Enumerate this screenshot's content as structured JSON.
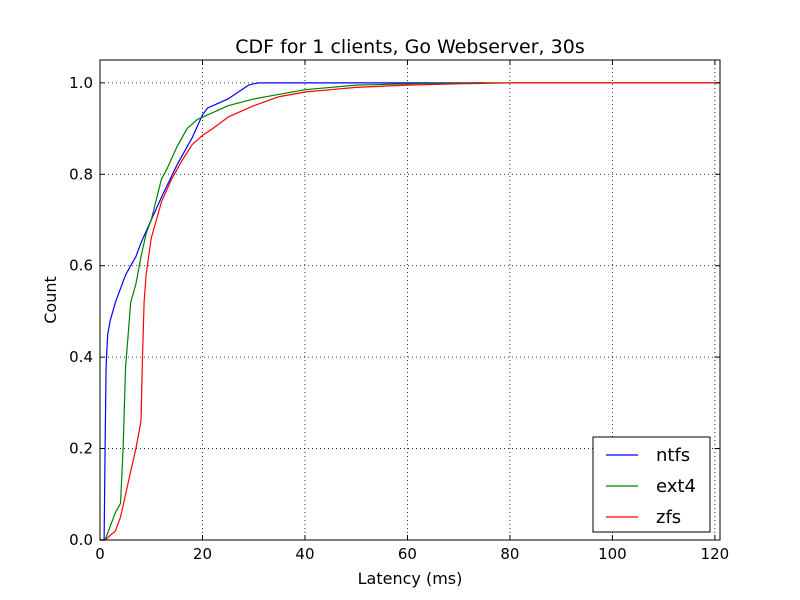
{
  "chart_data": {
    "type": "line",
    "title": "CDF for 1 clients, Go Webserver, 30s",
    "xlabel": "Latency (ms)",
    "ylabel": "Count",
    "xlim": [
      0,
      121
    ],
    "ylim": [
      0,
      1.05
    ],
    "xticks": [
      0,
      20,
      40,
      60,
      80,
      100,
      120
    ],
    "yticks": [
      0.0,
      0.2,
      0.4,
      0.6,
      0.8,
      1.0
    ],
    "xtick_labels": [
      "0",
      "20",
      "40",
      "60",
      "80",
      "100",
      "120"
    ],
    "ytick_labels": [
      "0.0",
      "0.2",
      "0.4",
      "0.6",
      "0.8",
      "1.0"
    ],
    "grid": true,
    "legend_position": "lower-right",
    "series": [
      {
        "name": "ntfs",
        "color": "#0000ff",
        "x": [
          0,
          0.8,
          1.0,
          1.2,
          1.5,
          2,
          3,
          4,
          5,
          6,
          7,
          8,
          10,
          12,
          15,
          18,
          20,
          21,
          23,
          25,
          27,
          29,
          30,
          31,
          33,
          40,
          60,
          75
        ],
        "y": [
          0,
          0.0,
          0.2,
          0.38,
          0.45,
          0.48,
          0.52,
          0.55,
          0.58,
          0.6,
          0.62,
          0.65,
          0.7,
          0.75,
          0.82,
          0.88,
          0.93,
          0.945,
          0.955,
          0.965,
          0.98,
          0.995,
          0.998,
          1.0,
          1.0,
          1.0,
          1.0,
          1.0
        ]
      },
      {
        "name": "ext4",
        "color": "#008000",
        "x": [
          0,
          1,
          2,
          3,
          3.5,
          4,
          4.5,
          5,
          5.5,
          6,
          7,
          8,
          9,
          10,
          12,
          13,
          15,
          17,
          19,
          21,
          23,
          25,
          30,
          35,
          40,
          50,
          60,
          75,
          121
        ],
        "y": [
          0,
          0,
          0.03,
          0.06,
          0.07,
          0.08,
          0.2,
          0.38,
          0.45,
          0.52,
          0.56,
          0.62,
          0.67,
          0.7,
          0.79,
          0.81,
          0.86,
          0.9,
          0.92,
          0.93,
          0.94,
          0.95,
          0.965,
          0.975,
          0.985,
          0.995,
          0.998,
          1.0,
          1.0
        ]
      },
      {
        "name": "zfs",
        "color": "#ff0000",
        "x": [
          0,
          1,
          2,
          3,
          4,
          5,
          6,
          7,
          8,
          8.3,
          8.6,
          9,
          10,
          11,
          12,
          14,
          16,
          18,
          20,
          22,
          25,
          30,
          35,
          40,
          45,
          50,
          60,
          70,
          80,
          121
        ],
        "y": [
          0,
          0,
          0.01,
          0.02,
          0.05,
          0.1,
          0.15,
          0.2,
          0.26,
          0.4,
          0.52,
          0.58,
          0.66,
          0.7,
          0.74,
          0.79,
          0.83,
          0.865,
          0.885,
          0.9,
          0.925,
          0.95,
          0.97,
          0.98,
          0.985,
          0.99,
          0.995,
          0.998,
          1.0,
          1.0
        ]
      }
    ]
  }
}
